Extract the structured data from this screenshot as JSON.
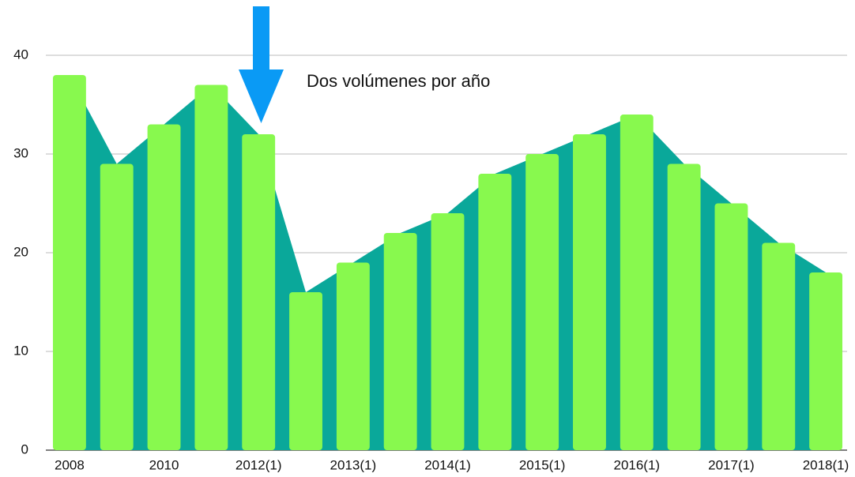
{
  "chart_data": {
    "type": "bar",
    "annotation": "Dos volúmenes por año",
    "categories": [
      "2008",
      null,
      "2010",
      null,
      "2012(1)",
      null,
      "2013(1)",
      null,
      "2014(1)",
      null,
      "2015(1)",
      null,
      "2016(1)",
      null,
      "2017(1)",
      null,
      "2018(1)"
    ],
    "series": [
      {
        "type": "area",
        "color": "#0aa89a",
        "values": [
          38,
          29,
          33,
          37,
          32,
          16,
          19,
          22,
          24,
          28,
          30,
          32,
          34,
          29,
          25,
          21,
          18
        ]
      },
      {
        "type": "bar",
        "color": "#88f94e",
        "values": [
          38,
          29,
          33,
          37,
          32,
          16,
          19,
          22,
          24,
          28,
          30,
          32,
          34,
          29,
          25,
          21,
          18
        ]
      }
    ],
    "ylim": [
      0,
      40
    ],
    "yticks": [
      0,
      10,
      20,
      30,
      40
    ],
    "grid": true
  }
}
